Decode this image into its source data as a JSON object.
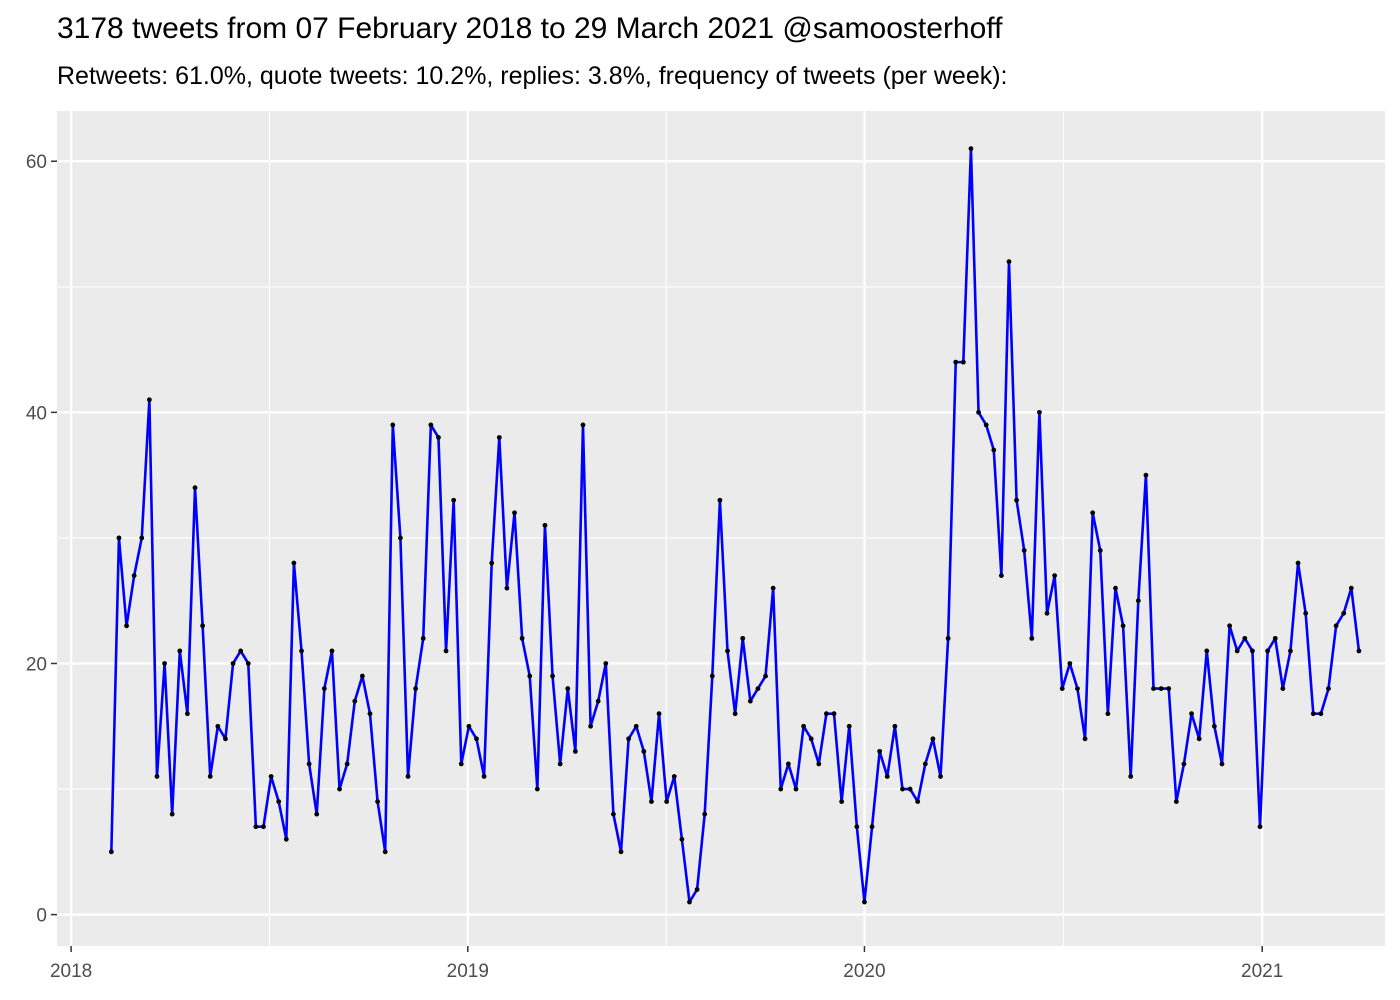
{
  "chart_data": {
    "type": "line",
    "title": "3178 tweets from 07 February 2018 to 29 March 2021 @samoosterhoff",
    "subtitle": "Retweets: 61.0%, quote tweets: 10.2%, replies: 3.8%, frequency of tweets (per week):",
    "xlabel": "",
    "ylabel": "",
    "x_start": "2018-02-07",
    "x_step": "1 week",
    "xlim": [
      "2017-12-19",
      "2021-04-24"
    ],
    "ylim": [
      -2.5,
      64
    ],
    "x_ticks": [
      "2018-01-01",
      "2019-01-01",
      "2020-01-01",
      "2021-01-01"
    ],
    "x_tick_labels": [
      "2018",
      "2019",
      "2020",
      "2021"
    ],
    "y_ticks": [
      0,
      20,
      40,
      60
    ],
    "grid": true,
    "line_color": "#0000ff",
    "point_color": "#000000",
    "panel_background": "#ebebeb",
    "values": [
      5,
      30,
      23,
      27,
      30,
      41,
      11,
      20,
      8,
      21,
      16,
      34,
      23,
      11,
      15,
      14,
      20,
      21,
      20,
      7,
      7,
      11,
      9,
      6,
      28,
      21,
      12,
      8,
      18,
      21,
      10,
      12,
      17,
      19,
      16,
      9,
      5,
      39,
      30,
      11,
      18,
      22,
      39,
      38,
      21,
      33,
      12,
      15,
      14,
      11,
      28,
      38,
      26,
      32,
      22,
      19,
      10,
      31,
      19,
      12,
      18,
      13,
      39,
      15,
      17,
      20,
      8,
      5,
      14,
      15,
      13,
      9,
      16,
      9,
      11,
      6,
      1,
      2,
      8,
      19,
      33,
      21,
      16,
      22,
      17,
      18,
      19,
      26,
      10,
      12,
      10,
      15,
      14,
      12,
      16,
      16,
      9,
      15,
      7,
      1,
      7,
      13,
      11,
      15,
      10,
      10,
      9,
      12,
      14,
      11,
      22,
      44,
      44,
      61,
      40,
      39,
      37,
      27,
      52,
      33,
      29,
      22,
      40,
      24,
      27,
      18,
      20,
      18,
      14,
      32,
      29,
      16,
      26,
      23,
      11,
      25,
      35,
      18,
      18,
      18,
      9,
      12,
      16,
      14,
      21,
      15,
      12,
      23,
      21,
      22,
      21,
      7,
      21,
      22,
      18,
      21,
      28,
      24,
      16,
      16,
      18,
      23,
      24,
      26,
      21
    ]
  }
}
